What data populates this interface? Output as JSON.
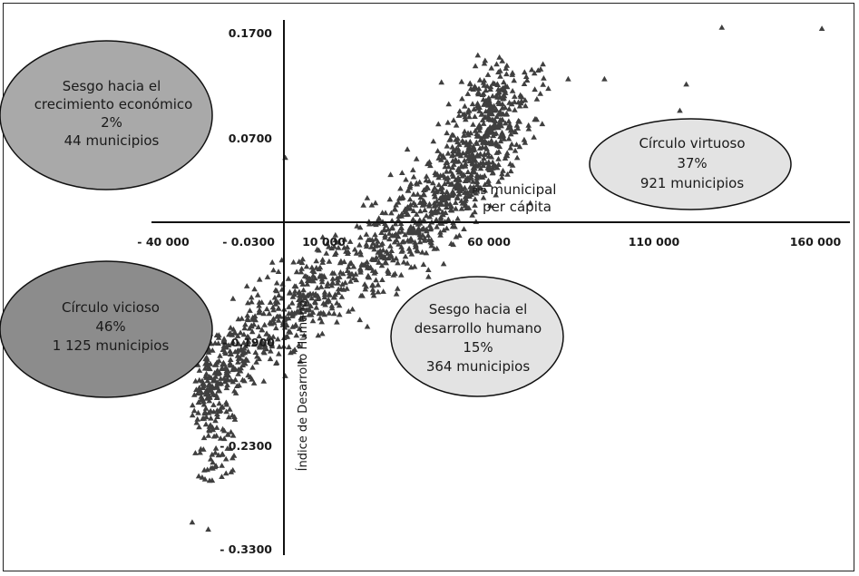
{
  "chart_data": {
    "type": "scatter",
    "x_axis": {
      "label_prefix": "PIB",
      "label_line1": "municipal",
      "label_line2": "per cápita",
      "ticks": [
        {
          "label": "- 40 000",
          "value": -40000
        },
        {
          "label": "10 000",
          "value": 10000
        },
        {
          "label": "60 000",
          "value": 60000
        },
        {
          "label": "110 000",
          "value": 110000
        },
        {
          "label": "160 000",
          "value": 160000
        }
      ],
      "range": [
        -40000,
        165000
      ]
    },
    "y_axis": {
      "label": "Índice de Desarrollo Humano",
      "ticks": [
        {
          "label": "0.1700",
          "value": 0.17
        },
        {
          "label": "0.0700",
          "value": 0.07
        },
        {
          "label": "- 0.0300",
          "value": -0.03
        },
        {
          "label": "- 0.1900",
          "value": -0.19
        },
        {
          "label": "- 0.2300",
          "value": -0.23
        },
        {
          "label": "- 0.3300",
          "value": -0.33
        }
      ]
    },
    "quadrants": [
      {
        "id": "top-left",
        "line1": "Sesgo hacia el",
        "line2": "crecimiento económico",
        "pct": "2%",
        "count": "44 municipios",
        "fill": "#a9a9a9"
      },
      {
        "id": "top-right",
        "line1": "Círculo virtuoso",
        "pct": "37%",
        "count": "921 municipios",
        "fill": "#e3e3e3"
      },
      {
        "id": "bottom-left",
        "line1": "Círculo vicioso",
        "pct": "46%",
        "count": "1 125 municipios",
        "fill": "#8c8c8c"
      },
      {
        "id": "bottom-right",
        "line1": "Sesgo hacia el",
        "line2": "desarrollo humano",
        "pct": "15%",
        "count": "364 municipios",
        "fill": "#e3e3e3"
      }
    ],
    "outlier_points": [
      [
        131000,
        0.175
      ],
      [
        162000,
        0.174
      ],
      [
        120000,
        0.121
      ],
      [
        118000,
        0.096
      ],
      [
        95000,
        0.126
      ],
      [
        84000,
        0.126
      ],
      [
        78000,
        0.117
      ],
      [
        70000,
        0.109
      ],
      [
        74000,
        0.088
      ],
      [
        65000,
        0.084
      ],
      [
        60000,
        0.093
      ],
      [
        50000,
        0.047
      ],
      [
        37000,
        0.039
      ],
      [
        41000,
        0.029
      ],
      [
        46000,
        0.014
      ],
      [
        22000,
        0.005
      ],
      [
        -2000,
        0.051
      ],
      [
        -1000,
        -0.152
      ],
      [
        -31000,
        -0.304
      ],
      [
        -33000,
        -0.363
      ],
      [
        -26000,
        -0.311
      ],
      [
        -27000,
        -0.262
      ],
      [
        -20000,
        -0.232
      ]
    ],
    "marker_color": "#3f3f3f"
  }
}
